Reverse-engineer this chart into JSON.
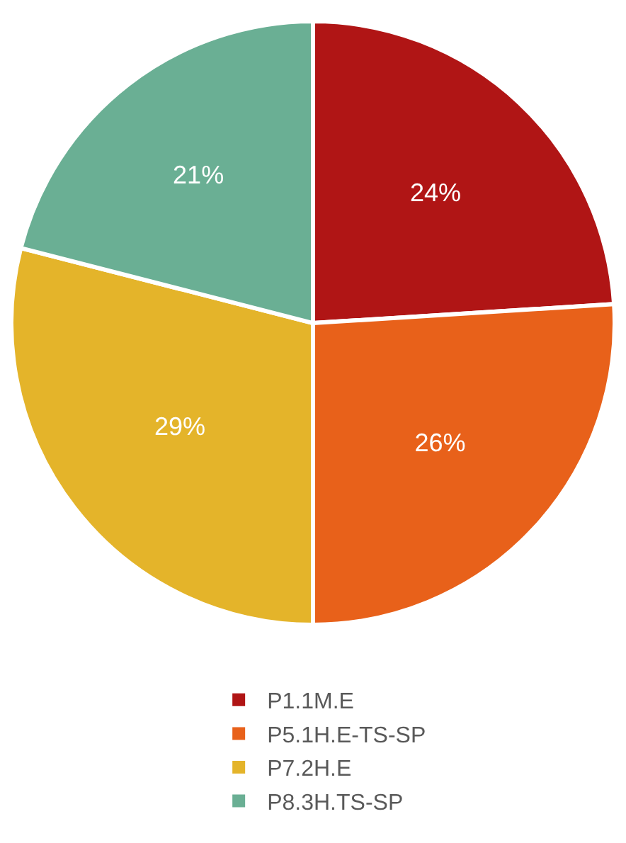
{
  "chart_data": {
    "type": "pie",
    "categories": [
      "P1.1M.E",
      "P5.1H.E-TS-SP",
      "P7.2H.E",
      "P8.3H.TS-SP"
    ],
    "values": [
      24,
      26,
      29,
      21
    ],
    "colors": [
      "#b01515",
      "#e8611a",
      "#e4b42a",
      "#6aaf94"
    ],
    "value_labels": [
      "24%",
      "26%",
      "29%",
      "21%"
    ],
    "legend": "bottom"
  }
}
